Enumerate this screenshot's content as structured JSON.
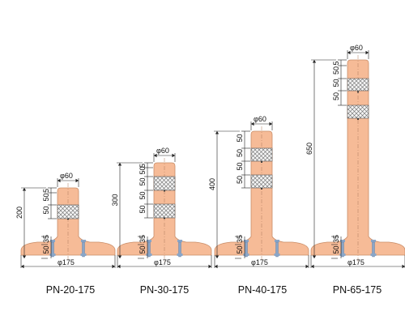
{
  "colors": {
    "post": "#f6bb97",
    "post_edge": "#c98d68",
    "reflector": "#eeeeee",
    "bolt": "#8aa6c8",
    "dim_line": "#222222"
  },
  "posts": [
    {
      "label": "PN-20-175",
      "top_dim": "φ60",
      "base_dim": "φ175",
      "height_dim": "200",
      "segments": [
        "5",
        "50",
        "50"
      ],
      "base_segments": [
        "35",
        "50"
      ]
    },
    {
      "label": "PN-30-175",
      "top_dim": "φ60",
      "base_dim": "φ175",
      "height_dim": "300",
      "segments": [
        "5",
        "50",
        "50",
        "50",
        "50"
      ],
      "base_segments": [
        "35",
        "50"
      ]
    },
    {
      "label": "PN-40-175",
      "top_dim": "φ60",
      "base_dim": "φ175",
      "height_dim": "400",
      "segments": [
        "50",
        "50",
        "50",
        "50"
      ],
      "base_segments": [
        "35",
        "50"
      ]
    },
    {
      "label": "PN-65-175",
      "top_dim": "φ60",
      "base_dim": "φ175",
      "height_dim": "650",
      "segments": [
        "5",
        "50",
        "50",
        "50"
      ],
      "base_segments": [
        "35",
        "50"
      ]
    }
  ]
}
